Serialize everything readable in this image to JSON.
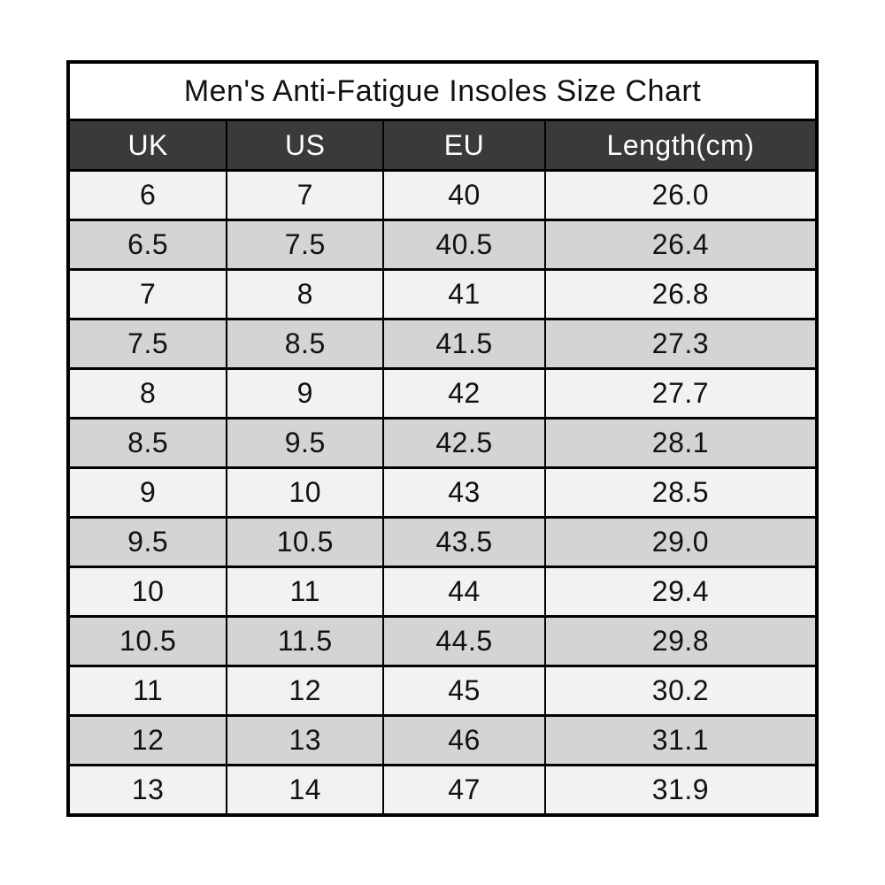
{
  "chart_data": {
    "type": "table",
    "title": "Men's Anti-Fatigue Insoles Size Chart",
    "columns": [
      "UK",
      "US",
      "EU",
      "Length(cm)"
    ],
    "rows": [
      [
        "6",
        "7",
        "40",
        "26.0"
      ],
      [
        "6.5",
        "7.5",
        "40.5",
        "26.4"
      ],
      [
        "7",
        "8",
        "41",
        "26.8"
      ],
      [
        "7.5",
        "8.5",
        "41.5",
        "27.3"
      ],
      [
        "8",
        "9",
        "42",
        "27.7"
      ],
      [
        "8.5",
        "9.5",
        "42.5",
        "28.1"
      ],
      [
        "9",
        "10",
        "43",
        "28.5"
      ],
      [
        "9.5",
        "10.5",
        "43.5",
        "29.0"
      ],
      [
        "10",
        "11",
        "44",
        "29.4"
      ],
      [
        "10.5",
        "11.5",
        "44.5",
        "29.8"
      ],
      [
        "11",
        "12",
        "45",
        "30.2"
      ],
      [
        "12",
        "13",
        "46",
        "31.1"
      ],
      [
        "13",
        "14",
        "47",
        "31.9"
      ]
    ],
    "colors": {
      "header_background": "#3a3a3a",
      "header_text": "#ffffff",
      "row_light": "#f2f2f2",
      "row_dark": "#d4d4d4",
      "border": "#000000",
      "title_text": "#111111"
    },
    "layout": {
      "stripes": "alternating",
      "title_position": "top-spanning-row"
    }
  }
}
